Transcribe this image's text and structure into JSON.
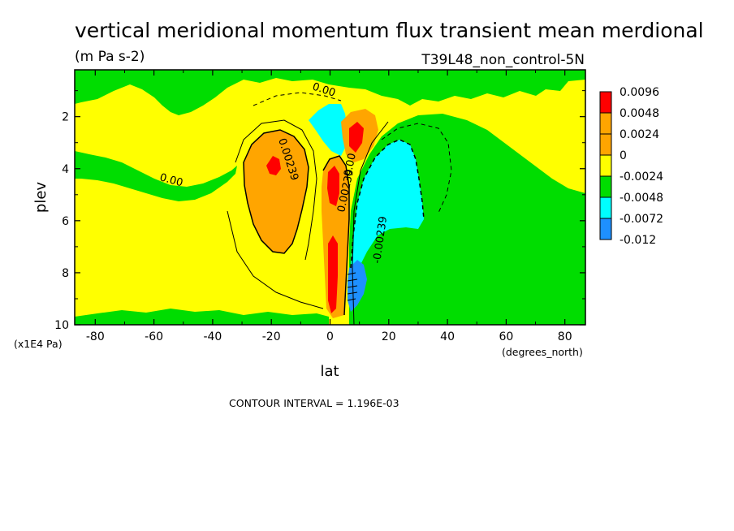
{
  "chart_data": {
    "type": "heatmap",
    "title": "vertical meridional momentum flux transient mean merdional",
    "units": "(m Pa s-2)",
    "dataset": "T39L48_non_control-5N",
    "xlabel": "lat",
    "x_units": "(degrees_north)",
    "ylabel": "plev",
    "y_units": "(x1E4 Pa)",
    "xlim": [
      -87,
      87
    ],
    "ylim": [
      10,
      0.2
    ],
    "x_ticks": [
      "-80",
      "-60",
      "-40",
      "-20",
      "0",
      "20",
      "40",
      "60",
      "80"
    ],
    "y_ticks": [
      "2",
      "4",
      "6",
      "8",
      "10"
    ],
    "contour_interval_text": "CONTOUR INTERVAL = 1.196E-03",
    "contour_labels": [
      "0.00",
      "0.00239",
      "0.00",
      "0.00239",
      "0.00",
      "-0.00239"
    ],
    "legend": {
      "position": "right",
      "labels": [
        "0.0096",
        "0.0048",
        "0.0024",
        "0",
        "-0.0024",
        "-0.0048",
        "-0.0072",
        "-0.012"
      ],
      "colors": [
        "#ff0000",
        "#ffa500",
        "#ffa500",
        "#ffff00",
        "#00dd00",
        "#00ffff",
        "#1e90ff",
        "#0044ff"
      ]
    },
    "colors": {
      "yellow": "#ffff00",
      "green": "#00dd00",
      "orange": "#ffa500",
      "red": "#ff0000",
      "cyan": "#00ffff",
      "blue": "#1e90ff"
    }
  }
}
